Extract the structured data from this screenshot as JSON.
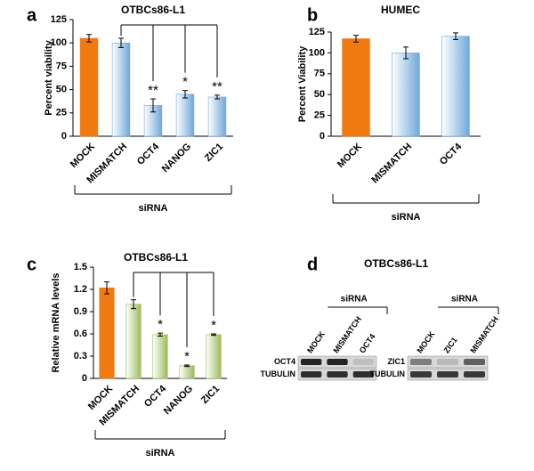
{
  "chart_data": [
    {
      "type": "bar",
      "panel": "a",
      "title": "OTBCs86-L1",
      "ylabel": "Percent viability",
      "xlabel": "siRNA",
      "categories": [
        "MOCK",
        "MISMATCH",
        "OCT4",
        "NANOG",
        "ZIC1"
      ],
      "values": [
        105,
        100,
        33,
        45,
        42
      ],
      "errors": [
        4,
        5,
        7,
        4,
        2
      ],
      "colors": [
        "#f07a10",
        "#6fa8dc",
        "#6fa8dc",
        "#6fa8dc",
        "#6fa8dc"
      ],
      "significance": [
        null,
        null,
        "**",
        "*",
        "**"
      ],
      "ylim": [
        0,
        125
      ],
      "yticks": [
        0,
        25,
        50,
        75,
        100,
        125
      ]
    },
    {
      "type": "bar",
      "panel": "b",
      "title": "HUMEC",
      "ylabel": "Percent Viability",
      "xlabel": "siRNA",
      "categories": [
        "MOCK",
        "MISMATCH",
        "OCT4"
      ],
      "values": [
        117,
        100,
        120
      ],
      "errors": [
        4,
        7,
        4
      ],
      "colors": [
        "#f07a10",
        "#6fa8dc",
        "#6fa8dc"
      ],
      "ylim": [
        0,
        125
      ],
      "yticks": [
        0,
        25,
        50,
        75,
        100,
        125
      ]
    },
    {
      "type": "bar",
      "panel": "c",
      "title": "OTBCs86-L1",
      "ylabel": "Relative mRNA levels",
      "xlabel": "siRNA",
      "categories": [
        "MOCK",
        "MISMATCH",
        "OCT4",
        "NANOG",
        "ZIC1"
      ],
      "values": [
        1.22,
        1.0,
        0.59,
        0.17,
        0.59
      ],
      "errors": [
        0.08,
        0.06,
        0.02,
        0.01,
        0.01
      ],
      "colors": [
        "#f07a10",
        "#9bbb59",
        "#9bbb59",
        "#9bbb59",
        "#9bbb59"
      ],
      "significance": [
        null,
        null,
        "*",
        "*",
        "*"
      ],
      "ylim": [
        0,
        1.5
      ],
      "yticks": [
        0,
        0.3,
        0.6,
        0.9,
        1.2,
        1.5
      ]
    }
  ],
  "blot": {
    "panel": "d",
    "title": "OTBCs86-L1",
    "blots": [
      {
        "group": "siRNA",
        "lanes": [
          "MOCK",
          "MISMATCH",
          "OCT4"
        ],
        "rows": [
          "OCT4",
          "TUBULIN"
        ]
      },
      {
        "group": "siRNA",
        "lanes": [
          "MOCK",
          "ZIC1",
          "MISMATCH"
        ],
        "rows": [
          "ZIC1",
          "TUBULIN"
        ]
      }
    ]
  }
}
